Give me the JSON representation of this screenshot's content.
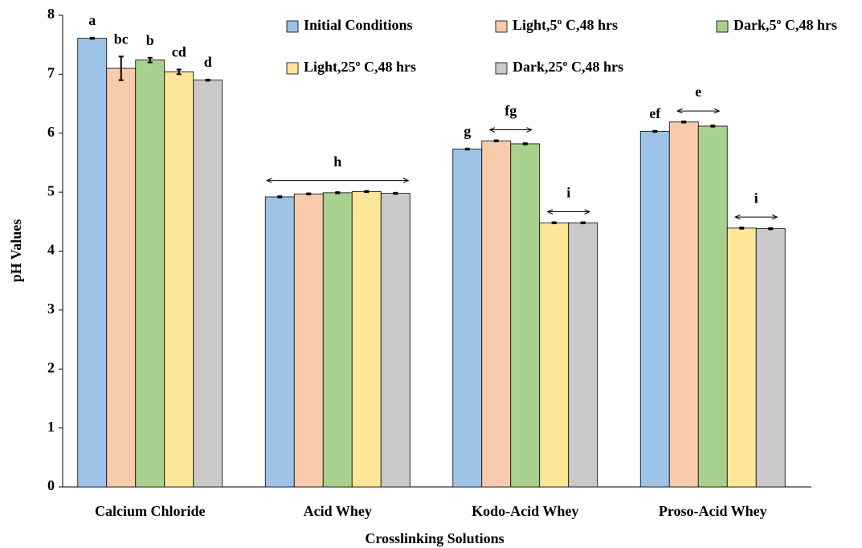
{
  "chart_data": {
    "type": "bar",
    "x_label": "Crosslinking Solutions",
    "y_label": "pH Values",
    "categories": [
      "Calcium Chloride",
      "Acid Whey",
      "Kodo-Acid Whey",
      "Proso-Acid Whey"
    ],
    "series": [
      {
        "name": "Initial Conditions",
        "color": "#9dc3e6",
        "values": [
          7.61,
          4.92,
          5.73,
          6.03
        ],
        "errors": [
          0.01,
          0.01,
          0.01,
          0.01
        ]
      },
      {
        "name": "Light,5º C,48 hrs",
        "color": "#f8cbad",
        "values": [
          7.1,
          4.97,
          5.87,
          6.19
        ],
        "errors": [
          0.2,
          0.01,
          0.01,
          0.01
        ]
      },
      {
        "name": "Dark,5º C,48 hrs",
        "color": "#a9d18e",
        "values": [
          7.24,
          4.99,
          5.82,
          6.12
        ],
        "errors": [
          0.04,
          0.01,
          0.01,
          0.01
        ]
      },
      {
        "name": "Light,25º C,48 hrs",
        "color": "#ffe699",
        "values": [
          7.04,
          5.01,
          4.48,
          4.39
        ],
        "errors": [
          0.04,
          0.01,
          0.01,
          0.01
        ]
      },
      {
        "name": "Dark,25º C,48 hrs",
        "color": "#c9c9c9",
        "values": [
          6.9,
          4.98,
          4.48,
          4.38
        ],
        "errors": [
          0.01,
          0.01,
          0.01,
          0.01
        ]
      }
    ],
    "annotations": [
      {
        "label": "a",
        "category": 0,
        "from": 0,
        "to": 0
      },
      {
        "label": "bc",
        "category": 0,
        "from": 1,
        "to": 1
      },
      {
        "label": "b",
        "category": 0,
        "from": 2,
        "to": 2
      },
      {
        "label": "cd",
        "category": 0,
        "from": 3,
        "to": 3
      },
      {
        "label": "d",
        "category": 0,
        "from": 4,
        "to": 4
      },
      {
        "label": "h",
        "category": 1,
        "from": 0,
        "to": 4
      },
      {
        "label": "g",
        "category": 2,
        "from": 0,
        "to": 0
      },
      {
        "label": "fg",
        "category": 2,
        "from": 1,
        "to": 2
      },
      {
        "label": "i",
        "category": 2,
        "from": 3,
        "to": 4
      },
      {
        "label": "ef",
        "category": 3,
        "from": 0,
        "to": 0
      },
      {
        "label": "e",
        "category": 3,
        "from": 1,
        "to": 2
      },
      {
        "label": "i",
        "category": 3,
        "from": 3,
        "to": 4
      }
    ],
    "ylim": [
      0,
      8
    ],
    "yticks": [
      0,
      1,
      2,
      3,
      4,
      5,
      6,
      7,
      8
    ],
    "grid": false,
    "legend": "top"
  }
}
